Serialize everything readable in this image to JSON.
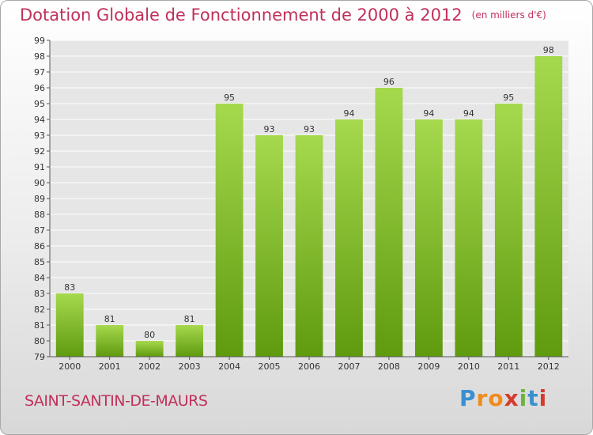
{
  "header": {
    "title": "Dotation Globale de Fonctionnement de 2000 à 2012",
    "subtitle": "(en milliers d'€)"
  },
  "footer": {
    "commune": "SAINT-SANTIN-DE-MAURS",
    "logo_letters": [
      "P",
      "r",
      "o",
      "x",
      "i",
      "t",
      "i"
    ],
    "logo_colors": [
      "#3a8fd0",
      "#f08a1c",
      "#f08a1c",
      "#d63a2e",
      "#6db33f",
      "#3a8fd0",
      "#d63a2e"
    ]
  },
  "colors": {
    "bar_light": "#a6d94e",
    "bar_dark": "#5f9a0f",
    "grid": "#ffffff",
    "text_accent": "#c0305a"
  },
  "chart_data": {
    "type": "bar",
    "categories": [
      "2000",
      "2001",
      "2002",
      "2003",
      "2004",
      "2005",
      "2006",
      "2007",
      "2008",
      "2009",
      "2010",
      "2011",
      "2012"
    ],
    "values": [
      83,
      81,
      80,
      81,
      95,
      93,
      93,
      94,
      96,
      94,
      94,
      95,
      98
    ],
    "ylim": [
      79,
      99
    ],
    "yticks": [
      79,
      80,
      81,
      82,
      83,
      84,
      85,
      86,
      87,
      88,
      89,
      90,
      91,
      92,
      93,
      94,
      95,
      96,
      97,
      98,
      99
    ],
    "grid": true,
    "title": "Dotation Globale de Fonctionnement de 2000 à 2012",
    "xlabel": "",
    "ylabel": ""
  }
}
